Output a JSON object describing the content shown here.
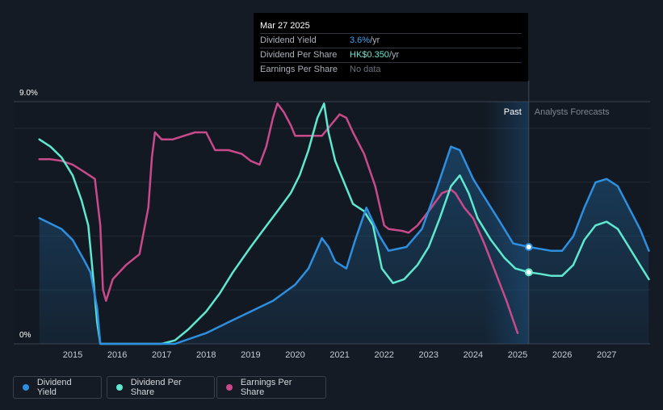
{
  "tooltip": {
    "date": "Mar 27 2025",
    "rows": [
      {
        "label": "Dividend Yield",
        "value": "3.6%",
        "unit": " /yr"
      },
      {
        "label": "Dividend Per Share",
        "value": "HK$0.350",
        "unit": " /yr"
      },
      {
        "label": "Earnings Per Share",
        "value": "No data",
        "unit": ""
      }
    ]
  },
  "legend": [
    {
      "label": "Dividend Yield",
      "color": "#2d8fe0"
    },
    {
      "label": "Dividend Per Share",
      "color": "#5ee8cf"
    },
    {
      "label": "Earnings Per Share",
      "color": "#c94a8a"
    }
  ],
  "chart_data": {
    "type": "line",
    "y_top_label": "9.0%",
    "y_bottom_label": "0%",
    "ylim": [
      0,
      9
    ],
    "xlim": [
      2014.0,
      2028.0
    ],
    "x_ticks": [
      "2015",
      "2016",
      "2017",
      "2018",
      "2019",
      "2020",
      "2021",
      "2022",
      "2023",
      "2024",
      "2025",
      "2026",
      "2027"
    ],
    "past_label": "Past",
    "forecast_label": "Analysts Forecasts",
    "forecast_start": 2025.25,
    "shade_start": 2024.25,
    "colors": {
      "yield": "#2d8fe0",
      "dps": "#5ee8cf",
      "eps": "#c94a8a",
      "background": "#151b24"
    },
    "series": [
      {
        "name": "Dividend Yield",
        "key": "yield",
        "points": [
          [
            2014.25,
            4.67
          ],
          [
            2014.75,
            4.27
          ],
          [
            2015.0,
            3.86
          ],
          [
            2015.25,
            3.13
          ],
          [
            2015.4,
            2.66
          ],
          [
            2015.55,
            1.33
          ],
          [
            2015.62,
            0.0
          ],
          [
            2016.0,
            0.0
          ],
          [
            2017.0,
            0.0
          ],
          [
            2017.3,
            0.0
          ],
          [
            2018.0,
            0.4
          ],
          [
            2018.5,
            0.8
          ],
          [
            2019.0,
            1.2
          ],
          [
            2019.5,
            1.6
          ],
          [
            2020.0,
            2.2
          ],
          [
            2020.3,
            2.8
          ],
          [
            2020.6,
            3.93
          ],
          [
            2020.75,
            3.6
          ],
          [
            2020.9,
            3.06
          ],
          [
            2021.15,
            2.8
          ],
          [
            2021.35,
            3.86
          ],
          [
            2021.6,
            5.06
          ],
          [
            2021.9,
            4.0
          ],
          [
            2022.1,
            3.46
          ],
          [
            2022.5,
            3.6
          ],
          [
            2022.85,
            4.27
          ],
          [
            2023.2,
            5.86
          ],
          [
            2023.5,
            7.33
          ],
          [
            2023.7,
            7.2
          ],
          [
            2024.0,
            6.13
          ],
          [
            2024.3,
            5.33
          ],
          [
            2024.6,
            4.54
          ],
          [
            2024.9,
            3.73
          ],
          [
            2025.25,
            3.6
          ],
          [
            2025.5,
            3.53
          ],
          [
            2025.75,
            3.46
          ],
          [
            2026.0,
            3.46
          ],
          [
            2026.25,
            4.0
          ],
          [
            2026.5,
            5.06
          ],
          [
            2026.75,
            6.0
          ],
          [
            2027.0,
            6.13
          ],
          [
            2027.25,
            5.86
          ],
          [
            2027.5,
            5.06
          ],
          [
            2027.75,
            4.27
          ],
          [
            2027.95,
            3.46
          ]
        ]
      },
      {
        "name": "Dividend Per Share",
        "key": "dps",
        "points": [
          [
            2014.25,
            7.6
          ],
          [
            2014.5,
            7.33
          ],
          [
            2014.75,
            6.93
          ],
          [
            2015.0,
            6.26
          ],
          [
            2015.2,
            5.33
          ],
          [
            2015.35,
            4.4
          ],
          [
            2015.45,
            2.66
          ],
          [
            2015.55,
            0.8
          ],
          [
            2015.62,
            0.0
          ],
          [
            2016.0,
            0.0
          ],
          [
            2016.5,
            0.0
          ],
          [
            2017.0,
            0.0
          ],
          [
            2017.3,
            0.13
          ],
          [
            2017.6,
            0.54
          ],
          [
            2018.0,
            1.2
          ],
          [
            2018.3,
            1.86
          ],
          [
            2018.6,
            2.66
          ],
          [
            2019.0,
            3.6
          ],
          [
            2019.3,
            4.27
          ],
          [
            2019.6,
            4.93
          ],
          [
            2019.9,
            5.6
          ],
          [
            2020.1,
            6.26
          ],
          [
            2020.3,
            7.2
          ],
          [
            2020.5,
            8.4
          ],
          [
            2020.65,
            8.93
          ],
          [
            2020.75,
            7.86
          ],
          [
            2020.9,
            6.8
          ],
          [
            2021.1,
            6.0
          ],
          [
            2021.3,
            5.2
          ],
          [
            2021.55,
            4.93
          ],
          [
            2021.75,
            4.4
          ],
          [
            2021.95,
            2.8
          ],
          [
            2022.2,
            2.26
          ],
          [
            2022.45,
            2.4
          ],
          [
            2022.75,
            2.93
          ],
          [
            2023.0,
            3.6
          ],
          [
            2023.25,
            4.67
          ],
          [
            2023.5,
            5.86
          ],
          [
            2023.7,
            6.26
          ],
          [
            2023.9,
            5.6
          ],
          [
            2024.1,
            4.67
          ],
          [
            2024.4,
            3.86
          ],
          [
            2024.7,
            3.2
          ],
          [
            2024.95,
            2.8
          ],
          [
            2025.25,
            2.66
          ],
          [
            2025.5,
            2.6
          ],
          [
            2025.75,
            2.53
          ],
          [
            2026.0,
            2.53
          ],
          [
            2026.25,
            2.93
          ],
          [
            2026.5,
            3.86
          ],
          [
            2026.75,
            4.4
          ],
          [
            2027.0,
            4.54
          ],
          [
            2027.25,
            4.27
          ],
          [
            2027.5,
            3.6
          ],
          [
            2027.75,
            2.93
          ],
          [
            2027.95,
            2.4
          ]
        ]
      },
      {
        "name": "Earnings Per Share",
        "key": "eps",
        "points": [
          [
            2014.25,
            6.86
          ],
          [
            2014.5,
            6.86
          ],
          [
            2014.75,
            6.8
          ],
          [
            2015.0,
            6.66
          ],
          [
            2015.25,
            6.4
          ],
          [
            2015.5,
            6.13
          ],
          [
            2015.62,
            4.4
          ],
          [
            2015.68,
            2.0
          ],
          [
            2015.75,
            1.6
          ],
          [
            2015.9,
            2.4
          ],
          [
            2016.2,
            2.93
          ],
          [
            2016.5,
            3.33
          ],
          [
            2016.7,
            5.06
          ],
          [
            2016.78,
            6.93
          ],
          [
            2016.85,
            7.86
          ],
          [
            2017.0,
            7.6
          ],
          [
            2017.25,
            7.6
          ],
          [
            2017.5,
            7.73
          ],
          [
            2017.75,
            7.86
          ],
          [
            2018.0,
            7.86
          ],
          [
            2018.2,
            7.2
          ],
          [
            2018.5,
            7.2
          ],
          [
            2018.8,
            7.06
          ],
          [
            2019.0,
            6.8
          ],
          [
            2019.2,
            6.66
          ],
          [
            2019.35,
            7.33
          ],
          [
            2019.5,
            8.4
          ],
          [
            2019.6,
            8.93
          ],
          [
            2019.75,
            8.6
          ],
          [
            2019.9,
            8.13
          ],
          [
            2020.0,
            7.73
          ],
          [
            2020.2,
            7.73
          ],
          [
            2020.45,
            7.73
          ],
          [
            2020.6,
            7.73
          ],
          [
            2020.8,
            8.13
          ],
          [
            2021.0,
            8.53
          ],
          [
            2021.15,
            8.4
          ],
          [
            2021.3,
            7.86
          ],
          [
            2021.55,
            7.06
          ],
          [
            2021.8,
            5.86
          ],
          [
            2022.0,
            4.4
          ],
          [
            2022.1,
            4.27
          ],
          [
            2022.4,
            4.2
          ],
          [
            2022.55,
            4.13
          ],
          [
            2022.75,
            4.4
          ],
          [
            2023.0,
            4.93
          ],
          [
            2023.3,
            5.6
          ],
          [
            2023.5,
            5.73
          ],
          [
            2023.6,
            5.6
          ],
          [
            2023.8,
            5.06
          ],
          [
            2024.0,
            4.67
          ],
          [
            2024.25,
            3.73
          ],
          [
            2024.5,
            2.66
          ],
          [
            2024.75,
            1.6
          ],
          [
            2025.0,
            0.4
          ]
        ]
      }
    ]
  }
}
